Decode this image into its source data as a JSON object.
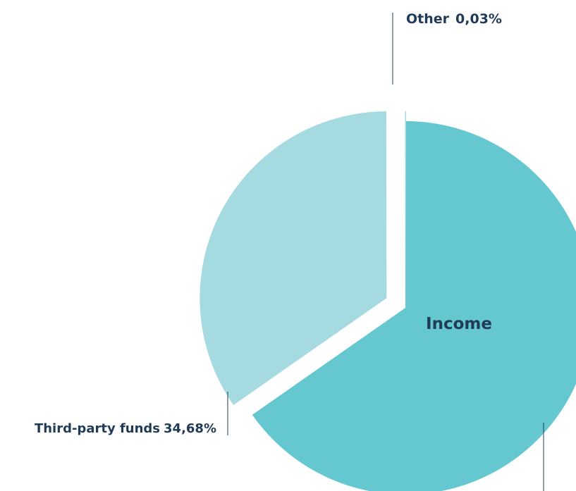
{
  "chart_data": {
    "type": "pie",
    "title": "Income",
    "labels": [
      "Income",
      "Third-party funds",
      "Other"
    ],
    "values": [
      65.29,
      34.68,
      0.03
    ],
    "value_labels": [
      "",
      "34,68%",
      "0,03%"
    ],
    "colors": [
      "#65c8d0",
      "#a5dbe0",
      "#a5dbe0"
    ],
    "legend": "none"
  }
}
